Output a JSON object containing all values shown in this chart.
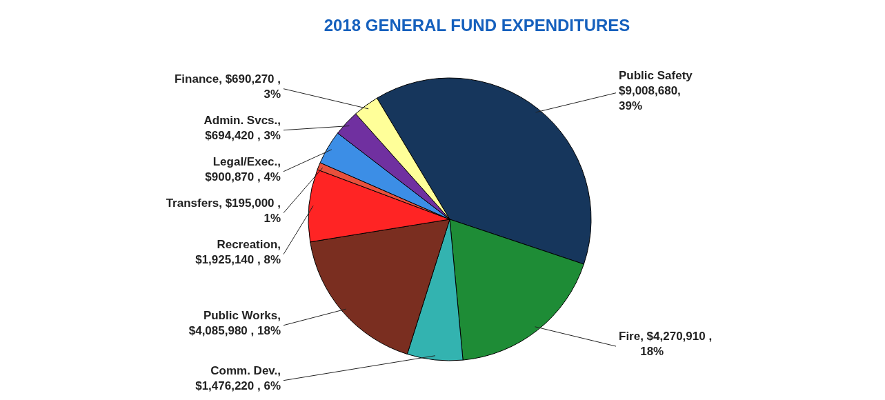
{
  "chart_data": {
    "type": "pie",
    "title": "2018 GENERAL FUND EXPENDITURES",
    "categories": [
      "Public Safety",
      "Fire",
      "Comm. Dev.",
      "Public Works",
      "Recreation",
      "Transfers",
      "Legal/Exec.",
      "Admin. Svcs.",
      "Finance"
    ],
    "values": [
      9008680,
      4270910,
      1476220,
      4085980,
      1925140,
      195000,
      900870,
      694420,
      690270
    ],
    "colors": [
      "#16365c",
      "#1e8c36",
      "#33b3b0",
      "#7a2e20",
      "#ff2424",
      "#e8503c",
      "#3c8ee6",
      "#7030a0",
      "#ffff99"
    ],
    "value_labels": [
      "$9,008,680,\n39%",
      ", $4,270,910 ,\n18%",
      ",\n$1,476,220 , 6%",
      ",\n$4,085,980 , 18%",
      ",\n$1,925,140 , 8%",
      ", $195,000 ,\n1%",
      ",\n$900,870 , 4%",
      ",\n$694,420 , 3%",
      ", $690,270 ,\n3%"
    ],
    "legend": false
  }
}
